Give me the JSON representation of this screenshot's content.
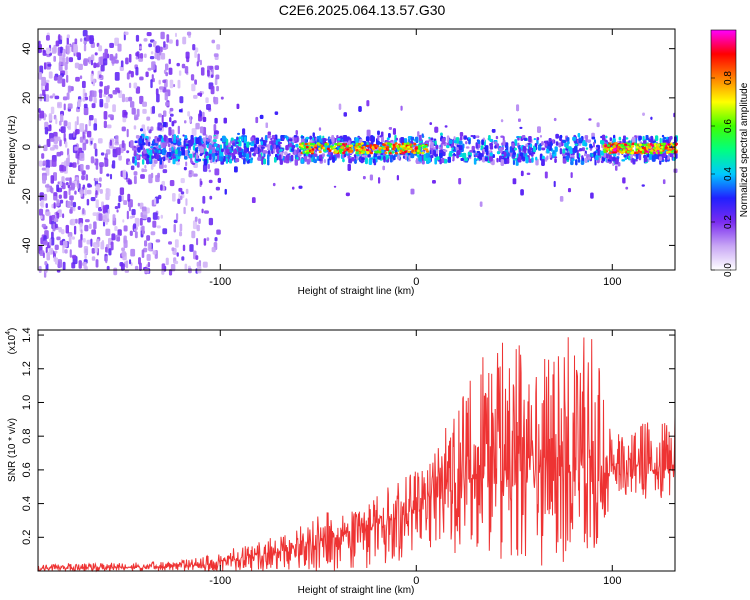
{
  "title": "C2E6.2025.064.13.57.G30",
  "chart_data": [
    {
      "type": "heatmap",
      "xlabel": "Height of straight line (km)",
      "ylabel": "Frequency (Hz)",
      "xlim": [
        -193,
        132
      ],
      "ylim": [
        -50,
        48
      ],
      "x_ticks": [
        -100,
        0,
        100
      ],
      "y_ticks": [
        -40,
        -20,
        0,
        20,
        40
      ],
      "colorbar": {
        "label": "Normalized spectral amplitude",
        "range": [
          0,
          1
        ],
        "ticks": [
          0.0,
          0.2,
          0.4,
          0.6,
          0.8
        ],
        "colors": [
          "#ffffff",
          "#c8a6f5",
          "#7a2cf0",
          "#2020ff",
          "#00c8ff",
          "#00ff80",
          "#40ff00",
          "#ffff00",
          "#ff8000",
          "#ff0000",
          "#ff00ff"
        ]
      },
      "features": [
        {
          "x_range": [
            -193,
            -110
          ],
          "y_range": [
            -50,
            48
          ],
          "amplitude": 0.15,
          "pattern": "broadband noise"
        },
        {
          "x_range": [
            -145,
            132
          ],
          "center_freq": 0,
          "half_width": 5,
          "amplitude": 0.35
        },
        {
          "x_range": [
            -60,
            5
          ],
          "center_freq": 0,
          "amplitude": 0.85
        },
        {
          "x_range": [
            95,
            132
          ],
          "center_freq": 0,
          "amplitude": 0.9
        }
      ]
    },
    {
      "type": "line",
      "xlabel": "Height of straight line (km)",
      "ylabel": "SNR (10 * v/v)",
      "y_scale_note": "(x10",
      "y_scale_exp": "4",
      "xlim": [
        -193,
        132
      ],
      "ylim": [
        0,
        1.43
      ],
      "x_ticks": [
        -100,
        0,
        100
      ],
      "y_ticks": [
        0.2,
        0.4,
        0.6,
        0.8,
        1.0,
        1.2,
        1.4
      ],
      "color": "#ee3333",
      "series": [
        {
          "x": [
            -193,
            -150,
            -130,
            -110,
            -100,
            -80,
            -60,
            -40,
            -20,
            -10,
            0,
            10,
            20,
            30,
            40,
            50,
            60,
            70,
            80,
            90,
            97,
            100,
            110,
            120,
            132
          ],
          "mean": [
            0.015,
            0.02,
            0.025,
            0.035,
            0.06,
            0.09,
            0.14,
            0.2,
            0.28,
            0.32,
            0.36,
            0.45,
            0.52,
            0.56,
            0.6,
            0.62,
            0.63,
            0.64,
            0.65,
            0.66,
            0.67,
            0.63,
            0.62,
            0.6,
            0.62
          ],
          "max": [
            0.04,
            0.05,
            0.055,
            0.08,
            0.12,
            0.18,
            0.27,
            0.38,
            0.48,
            0.55,
            0.6,
            0.75,
            1.0,
            1.3,
            1.35,
            1.38,
            1.33,
            1.36,
            1.43,
            1.4,
            1.1,
            0.8,
            0.85,
            0.9,
            0.92
          ],
          "min": [
            0.0,
            0.0,
            0.0,
            0.0,
            0.0,
            0.0,
            0.0,
            0.0,
            0.01,
            0.05,
            0.1,
            0.15,
            0.1,
            0.05,
            0.02,
            0.05,
            0.02,
            0.05,
            0.05,
            0.1,
            0.3,
            0.45,
            0.45,
            0.42,
            0.45
          ]
        }
      ]
    }
  ]
}
